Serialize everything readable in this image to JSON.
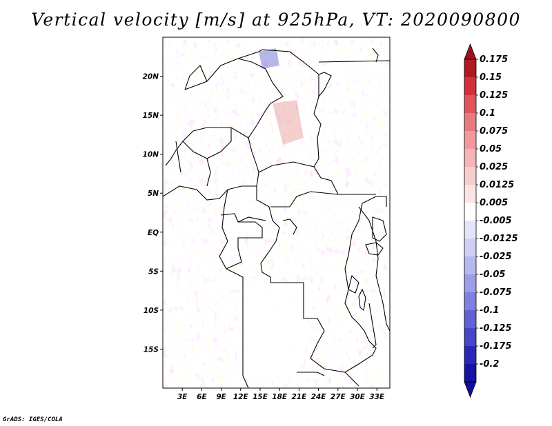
{
  "map": {
    "title": "Vertical velocity [m/s] at 925hPa, VT: 2020090800",
    "credit": "GrADS: IGES/COLA",
    "variable": "Vertical velocity",
    "units": "m/s",
    "level": "925hPa",
    "valid_time": "2020090800",
    "lon_range": [
      0,
      35
    ],
    "lat_range": [
      -20,
      25
    ],
    "lat_labels": [
      "20N",
      "15N",
      "10N",
      "5N",
      "EQ",
      "5S",
      "10S",
      "15S"
    ],
    "lat_values": [
      20,
      15,
      10,
      5,
      0,
      -5,
      -10,
      -15
    ],
    "lon_labels": [
      "3E",
      "6E",
      "9E",
      "12E",
      "15E",
      "18E",
      "21E",
      "24E",
      "27E",
      "30E",
      "33E"
    ],
    "lon_values": [
      3,
      6,
      9,
      12,
      15,
      18,
      21,
      24,
      27,
      30,
      33
    ]
  },
  "colorbar": {
    "labels": [
      "0.175",
      "0.15",
      "0.125",
      "0.1",
      "0.075",
      "0.05",
      "0.025",
      "0.0125",
      "0.005",
      "-0.005",
      "-0.0125",
      "-0.025",
      "-0.05",
      "-0.075",
      "-0.1",
      "-0.125",
      "-0.175",
      "-0.2"
    ],
    "colors": [
      "#b01822",
      "#d2303a",
      "#e0555c",
      "#e97b80",
      "#f19a9d",
      "#f5b4b6",
      "#f9cccd",
      "#fce4e4",
      "#ffffff",
      "#e4e4fc",
      "#cfcff6",
      "#b8b8f0",
      "#9d9de8",
      "#8080df",
      "#6262d4",
      "#4646c8",
      "#2828b8",
      "#1414a4"
    ],
    "top_color": "#a0101c",
    "bottom_color": "#10109c"
  }
}
